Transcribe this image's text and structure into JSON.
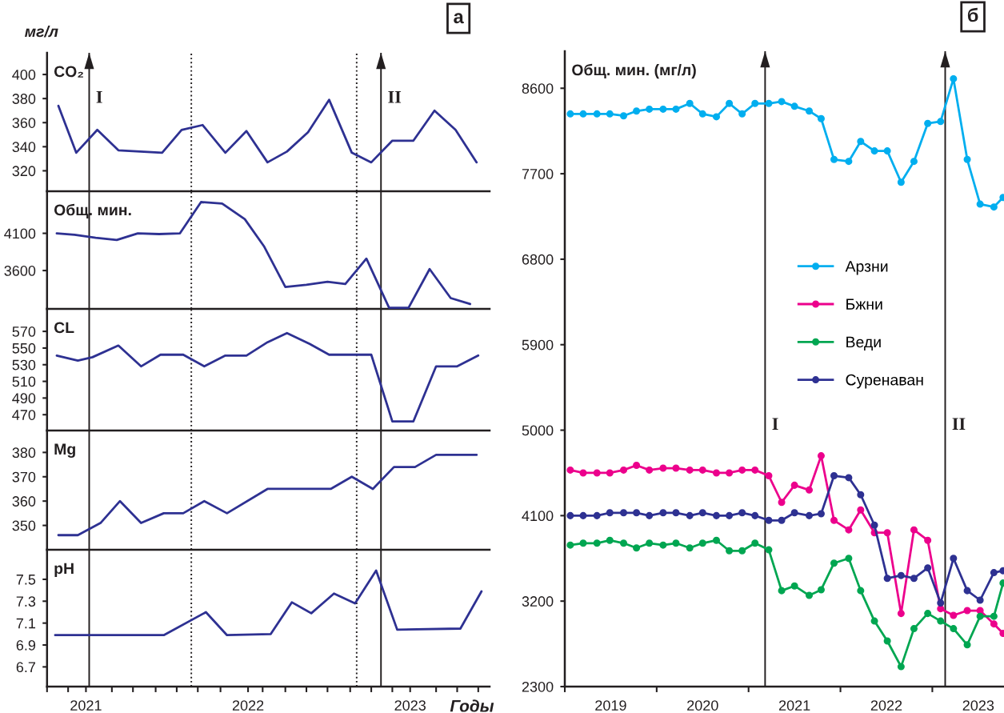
{
  "chart_data": [
    {
      "type": "line",
      "title": "а",
      "ylabel": "CO₂",
      "annotations": [
        "мг/л",
        {
          "text": "I",
          "x": 2021.02,
          "y": 380
        },
        {
          "text": "II",
          "x": 2022.82,
          "y": 380
        }
      ],
      "x": [
        2020.83,
        2020.94,
        2021.07,
        2021.2,
        2021.47,
        2021.59,
        2021.72,
        2021.86,
        2021.99,
        2022.12,
        2022.24,
        2022.37,
        2022.5,
        2022.64,
        2022.76,
        2022.89,
        2023.02,
        2023.15,
        2023.28,
        2023.41
      ],
      "values": [
        374,
        335,
        354,
        337,
        335,
        354,
        358,
        335,
        353,
        327,
        336,
        352,
        379,
        335,
        327,
        345,
        345,
        370,
        354,
        327
      ],
      "color": "#2e3192",
      "xlim": [
        2020.76,
        2023.49
      ],
      "ylim": [
        303,
        418
      ],
      "yticks": [
        320,
        340,
        360,
        380,
        400
      ],
      "tick_labels": "y",
      "ref_lines": [
        {
          "axis": "x",
          "value": 2021.02
        },
        {
          "axis": "x",
          "value": 2021.65,
          "line_style": "dotted"
        },
        {
          "axis": "x",
          "value": 2022.67,
          "line_style": "dotted"
        },
        {
          "axis": "x",
          "value": 2022.82
        }
      ]
    },
    {
      "type": "line",
      "ylabel": "Общ. мин.",
      "x": [
        2020.82,
        2020.93,
        2021.06,
        2021.19,
        2021.32,
        2021.45,
        2021.58,
        2021.71,
        2021.84,
        2021.98,
        2022.1,
        2022.23,
        2022.36,
        2022.49,
        2022.6,
        2022.73,
        2022.87,
        2022.99,
        2023.12,
        2023.25,
        2023.37
      ],
      "values": [
        4100,
        4080,
        4040,
        4010,
        4100,
        4090,
        4100,
        4520,
        4500,
        4290,
        3920,
        3380,
        3410,
        3450,
        3420,
        3760,
        3100,
        3100,
        3620,
        3230,
        3150
      ],
      "color": "#2e3192",
      "xlim": [
        2020.76,
        2023.49
      ],
      "ylim": [
        3085,
        4665
      ],
      "yticks": [
        3600,
        4100
      ],
      "tick_labels": "y",
      "ref_lines": [
        {
          "axis": "x",
          "value": 2021.02
        },
        {
          "axis": "x",
          "value": 2021.65,
          "line_style": "dotted"
        },
        {
          "axis": "x",
          "value": 2022.67,
          "line_style": "dotted"
        },
        {
          "axis": "x",
          "value": 2022.82
        }
      ]
    },
    {
      "type": "line",
      "ylabel": "CL",
      "x": [
        2020.82,
        2020.95,
        2021.04,
        2021.2,
        2021.34,
        2021.46,
        2021.6,
        2021.73,
        2021.86,
        2021.99,
        2022.12,
        2022.24,
        2022.38,
        2022.5,
        2022.63,
        2022.76,
        2022.89,
        2023.02,
        2023.16,
        2023.29,
        2023.42
      ],
      "values": [
        541,
        535,
        539,
        553,
        528,
        542,
        542,
        528,
        541,
        541,
        557,
        568,
        555,
        542,
        542,
        542,
        462,
        462,
        528,
        528,
        541
      ],
      "color": "#2e3192",
      "xlim": [
        2020.76,
        2023.49
      ],
      "ylim": [
        451,
        597
      ],
      "yticks": [
        470,
        490,
        510,
        530,
        550,
        570
      ],
      "tick_labels": "y",
      "ref_lines": [
        {
          "axis": "x",
          "value": 2021.02
        },
        {
          "axis": "x",
          "value": 2021.65,
          "line_style": "dotted"
        },
        {
          "axis": "x",
          "value": 2022.67,
          "line_style": "dotted"
        },
        {
          "axis": "x",
          "value": 2022.82
        }
      ]
    },
    {
      "type": "line",
      "ylabel": "Mg",
      "x": [
        2020.83,
        2020.95,
        2021.09,
        2021.21,
        2021.34,
        2021.48,
        2021.6,
        2021.73,
        2021.87,
        2022.12,
        2022.25,
        2022.38,
        2022.51,
        2022.64,
        2022.77,
        2022.9,
        2023.03,
        2023.16,
        2023.29,
        2023.41
      ],
      "values": [
        346,
        346,
        351,
        360,
        351,
        355,
        355,
        360,
        355,
        365,
        365,
        365,
        365,
        370,
        365,
        374,
        374,
        379,
        379,
        379
      ],
      "color": "#2e3192",
      "xlim": [
        2020.76,
        2023.49
      ],
      "ylim": [
        340,
        389
      ],
      "yticks": [
        350,
        360,
        370,
        380
      ],
      "tick_labels": "y",
      "ref_lines": [
        {
          "axis": "x",
          "value": 2021.02
        },
        {
          "axis": "x",
          "value": 2021.65,
          "line_style": "dotted"
        },
        {
          "axis": "x",
          "value": 2022.67,
          "line_style": "dotted"
        },
        {
          "axis": "x",
          "value": 2022.82
        }
      ]
    },
    {
      "type": "line",
      "ylabel": "pH",
      "xlabel": "Годы",
      "x": [
        2020.81,
        2021.07,
        2021.48,
        2021.74,
        2021.87,
        2022.14,
        2022.27,
        2022.39,
        2022.53,
        2022.66,
        2022.79,
        2022.92,
        2023.31,
        2023.44
      ],
      "values": [
        6.99,
        6.99,
        6.99,
        7.2,
        6.99,
        7.0,
        7.29,
        7.19,
        7.37,
        7.28,
        7.58,
        7.04,
        7.05,
        7.39
      ],
      "color": "#2e3192",
      "xlim": [
        2020.76,
        2023.49
      ],
      "ylim": [
        6.52,
        7.77
      ],
      "yticks": [
        6.7,
        6.9,
        7.1,
        7.3,
        7.5
      ],
      "xticks": [
        2021,
        2022,
        2023,
        {
          "value": 2020.76,
          "label": null
        },
        {
          "value": 2020.89,
          "label": null
        },
        {
          "value": 2021,
          "label": null
        },
        {
          "value": 2021.16,
          "label": null
        },
        {
          "value": 2021.29,
          "label": null
        },
        {
          "value": 2021.43,
          "label": null
        },
        {
          "value": 2021.56,
          "label": null
        },
        {
          "value": 2021.69,
          "label": null
        },
        {
          "value": 2021.83,
          "label": null
        },
        {
          "value": 2022,
          "label": null
        },
        {
          "value": 2022.09,
          "label": null
        },
        {
          "value": 2022.23,
          "label": null
        },
        {
          "value": 2022.36,
          "label": null
        },
        {
          "value": 2022.49,
          "label": null
        },
        {
          "value": 2022.63,
          "label": null
        },
        {
          "value": 2022.76,
          "label": null
        },
        {
          "value": 2022.89,
          "label": null
        },
        {
          "value": 2023,
          "label": null
        },
        {
          "value": 2023.16,
          "label": null
        },
        {
          "value": 2023.29,
          "label": null
        },
        {
          "value": 2023.42,
          "label": null
        }
      ],
      "ref_lines": [
        {
          "axis": "x",
          "value": 2021.02
        },
        {
          "axis": "x",
          "value": 2021.65,
          "line_style": "dotted"
        },
        {
          "axis": "x",
          "value": 2022.67,
          "line_style": "dotted"
        },
        {
          "axis": "x",
          "value": 2022.82
        }
      ]
    },
    {
      "type": "line",
      "title": "б",
      "ylabel": "Общ. мин. (мг/л)",
      "annotations": [
        {
          "text": "I",
          "x": 2021.18,
          "y": 5050
        },
        {
          "text": "II",
          "x": 2023.14,
          "y": 5050
        }
      ],
      "marker": "circle",
      "legend": "center",
      "x": [
        2019.06,
        2019.2,
        2019.35,
        2019.49,
        2019.64,
        2019.78,
        2019.92,
        2020.07,
        2020.21,
        2020.36,
        2020.5,
        2020.65,
        2020.79,
        2020.93,
        2021.07,
        2021.22,
        2021.36,
        2021.5,
        2021.66,
        2021.79,
        2021.93,
        2022.09,
        2022.22,
        2022.37,
        2022.51,
        2022.66,
        2022.8,
        2022.95,
        2023.09,
        2023.23,
        2023.38,
        2023.52,
        2023.67,
        2023.77
      ],
      "series": [
        {
          "name": "Арзни",
          "color": "#00aeef",
          "values": [
            8330,
            8330,
            8330,
            8330,
            8310,
            8360,
            8380,
            8380,
            8380,
            8440,
            8330,
            8300,
            8440,
            8330,
            8440,
            8440,
            8460,
            8410,
            8360,
            8280,
            7850,
            7830,
            8040,
            7940,
            7940,
            7610,
            7830,
            8230,
            8250,
            8700,
            7850,
            7380,
            7350,
            7450
          ]
        },
        {
          "name": "Бжни",
          "color": "#ec008c",
          "values": [
            4580,
            4550,
            4550,
            4550,
            4580,
            4630,
            4580,
            4600,
            4600,
            4580,
            4580,
            4550,
            4550,
            4580,
            4580,
            4520,
            4240,
            4420,
            4370,
            4730,
            4050,
            3950,
            4160,
            3920,
            3920,
            3070,
            3950,
            3840,
            3120,
            3050,
            3100,
            3100,
            2960,
            2860
          ]
        },
        {
          "name": "Веди",
          "color": "#00a651",
          "values": [
            3790,
            3810,
            3810,
            3840,
            3810,
            3760,
            3810,
            3790,
            3810,
            3760,
            3810,
            3840,
            3730,
            3730,
            3810,
            3740,
            3310,
            3360,
            3260,
            3320,
            3600,
            3650,
            3310,
            2990,
            2780,
            2510,
            2910,
            3070,
            2990,
            2910,
            2740,
            3040,
            3040,
            3390
          ]
        },
        {
          "name": "Суренаван",
          "color": "#2e3192",
          "values": [
            4100,
            4100,
            4100,
            4130,
            4130,
            4130,
            4100,
            4130,
            4130,
            4100,
            4130,
            4100,
            4100,
            4130,
            4100,
            4050,
            4050,
            4130,
            4100,
            4120,
            4520,
            4500,
            4320,
            4000,
            3440,
            3470,
            3440,
            3550,
            3180,
            3650,
            3310,
            3210,
            3500,
            3520
          ]
        }
      ],
      "xlim": [
        2019,
        2023.78
      ],
      "ylim": [
        2300,
        8990
      ],
      "yticks": [
        2300,
        3200,
        4100,
        5000,
        5900,
        6800,
        7700,
        8600
      ],
      "xticks": [
        {
          "value": 2019,
          "label": null
        },
        {
          "value": 2020,
          "label": null
        },
        {
          "value": 2021,
          "label": null
        },
        {
          "value": 2022,
          "label": null
        },
        {
          "value": 2023,
          "label": null
        },
        {
          "value": 2019.5,
          "label": "2019"
        },
        {
          "value": 2020.5,
          "label": "2020"
        },
        {
          "value": 2021.5,
          "label": "2021"
        },
        {
          "value": 2022.5,
          "label": "2022"
        },
        {
          "value": 2023.5,
          "label": "2023"
        }
      ],
      "ref_lines": [
        {
          "axis": "x",
          "value": 2021.18
        },
        {
          "axis": "x",
          "value": 2023.14
        }
      ]
    }
  ]
}
